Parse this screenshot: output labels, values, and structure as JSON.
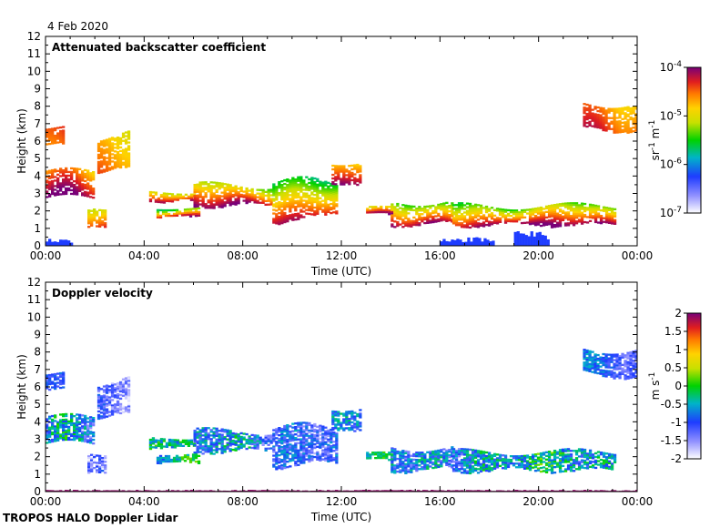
{
  "date_label": "4 Feb 2020",
  "footer": "TROPOS HALO Doppler Lidar",
  "chart_data": [
    {
      "type": "heatmap",
      "title": "Attenuated backscatter coefficient",
      "xlabel": "Time (UTC)",
      "ylabel": "Height (km)",
      "x_ticks": [
        "00:00",
        "04:00",
        "08:00",
        "12:00",
        "16:00",
        "20:00",
        "00:00"
      ],
      "x_range_hours": [
        0,
        24
      ],
      "ylim": [
        0,
        12
      ],
      "y_ticks": [
        "0",
        "1",
        "2",
        "3",
        "4",
        "5",
        "6",
        "7",
        "8",
        "9",
        "10",
        "11",
        "12"
      ],
      "colorbar": {
        "scale": "log",
        "range": [
          1e-07,
          0.0001
        ],
        "ticks": [
          {
            "value": 0.0001,
            "base": "10",
            "exp": "-4"
          },
          {
            "value": 1e-05,
            "base": "10",
            "exp": "-5"
          },
          {
            "value": 1e-06,
            "base": "10",
            "exp": "-6"
          },
          {
            "value": 1e-07,
            "base": "10",
            "exp": "-7"
          }
        ],
        "unit": {
          "a": "sr",
          "a_exp": "-1",
          "b": " m",
          "b_exp": "-1"
        }
      },
      "layers": [
        {
          "t0": 0.0,
          "t1": 0.7,
          "h0": 5.8,
          "h1": 7.0,
          "c0": 0.85,
          "c1": 0.8
        },
        {
          "t0": 0.0,
          "t1": 1.9,
          "h0": 2.6,
          "h1": 4.5,
          "c0": 0.75,
          "c1": 0.98
        },
        {
          "t0": 1.7,
          "t1": 2.4,
          "h0": 1.1,
          "h1": 2.5,
          "c0": 0.65,
          "c1": 0.9
        },
        {
          "t0": 2.1,
          "t1": 3.4,
          "h0": 4.0,
          "h1": 6.8,
          "c0": 0.75,
          "c1": 0.85
        },
        {
          "t0": 4.2,
          "t1": 6.0,
          "h0": 2.5,
          "h1": 3.2,
          "c0": 0.65,
          "c1": 0.98
        },
        {
          "t0": 4.5,
          "t1": 6.2,
          "h0": 1.6,
          "h1": 2.3,
          "c0": 0.5,
          "c1": 0.95
        },
        {
          "t0": 6.0,
          "t1": 9.2,
          "h0": 2.2,
          "h1": 3.7,
          "c0": 0.6,
          "c1": 0.98
        },
        {
          "t0": 9.2,
          "t1": 11.8,
          "h0": 1.3,
          "h1": 4.0,
          "c0": 0.5,
          "c1": 0.98
        },
        {
          "t0": 11.6,
          "t1": 12.8,
          "h0": 3.5,
          "h1": 5.1,
          "c0": 0.7,
          "c1": 0.95
        },
        {
          "t0": 13.0,
          "t1": 14.0,
          "h0": 1.8,
          "h1": 2.3,
          "c0": 0.6,
          "c1": 0.95
        },
        {
          "t0": 14.0,
          "t1": 16.5,
          "h0": 1.1,
          "h1": 2.8,
          "c0": 0.55,
          "c1": 0.98
        },
        {
          "t0": 16.5,
          "t1": 23.1,
          "h0": 1.1,
          "h1": 2.5,
          "c0": 0.55,
          "c1": 0.98
        },
        {
          "t0": 21.8,
          "t1": 24.0,
          "h0": 6.5,
          "h1": 8.5,
          "c0": 0.8,
          "c1": 0.9
        }
      ],
      "surface": [
        {
          "t0": 0.0,
          "t1": 1.0,
          "h0": 0.0,
          "h1": 0.4,
          "c": 0.25
        },
        {
          "t0": 16.0,
          "t1": 18.2,
          "h0": 0.0,
          "h1": 0.5,
          "c": 0.25
        },
        {
          "t0": 19.0,
          "t1": 20.4,
          "h0": 0.0,
          "h1": 0.9,
          "c": 0.25
        }
      ]
    },
    {
      "type": "heatmap",
      "title": "Doppler velocity",
      "xlabel": "Time (UTC)",
      "ylabel": "Height (km)",
      "x_ticks": [
        "00:00",
        "04:00",
        "08:00",
        "12:00",
        "16:00",
        "20:00",
        "00:00"
      ],
      "x_range_hours": [
        0,
        24
      ],
      "ylim": [
        0,
        12
      ],
      "y_ticks": [
        "0",
        "1",
        "2",
        "3",
        "4",
        "5",
        "6",
        "7",
        "8",
        "9",
        "10",
        "11",
        "12"
      ],
      "colorbar": {
        "scale": "linear",
        "range": [
          -2,
          2
        ],
        "tick_values": [
          2,
          1.5,
          1,
          0.5,
          0,
          -0.5,
          -1,
          -1.5,
          -2
        ],
        "tick_labels": [
          "2",
          "1.5",
          "1",
          "0.5",
          "0",
          "-0.5",
          "-1",
          "-1.5",
          "-2"
        ],
        "unit": {
          "a": "m s",
          "a_exp": "-1"
        }
      },
      "layers": [
        {
          "t0": 0.0,
          "t1": 0.7,
          "h0": 5.8,
          "h1": 7.0,
          "c0": 0.15,
          "c1": 0.3
        },
        {
          "t0": 0.0,
          "t1": 1.9,
          "h0": 2.6,
          "h1": 4.5,
          "c0": 0.15,
          "c1": 0.45
        },
        {
          "t0": 1.7,
          "t1": 2.4,
          "h0": 1.1,
          "h1": 2.5,
          "c0": 0.05,
          "c1": 0.3
        },
        {
          "t0": 2.1,
          "t1": 3.4,
          "h0": 4.0,
          "h1": 6.8,
          "c0": 0.1,
          "c1": 0.3
        },
        {
          "t0": 4.2,
          "t1": 6.0,
          "h0": 2.5,
          "h1": 3.2,
          "c0": 0.3,
          "c1": 0.55
        },
        {
          "t0": 4.5,
          "t1": 6.2,
          "h0": 1.6,
          "h1": 2.3,
          "c0": 0.3,
          "c1": 0.5
        },
        {
          "t0": 6.0,
          "t1": 9.2,
          "h0": 2.2,
          "h1": 3.7,
          "c0": 0.15,
          "c1": 0.45
        },
        {
          "t0": 9.2,
          "t1": 11.8,
          "h0": 1.3,
          "h1": 4.0,
          "c0": 0.15,
          "c1": 0.4
        },
        {
          "t0": 11.6,
          "t1": 12.8,
          "h0": 3.5,
          "h1": 5.1,
          "c0": 0.15,
          "c1": 0.4
        },
        {
          "t0": 13.0,
          "t1": 14.0,
          "h0": 1.8,
          "h1": 2.3,
          "c0": 0.3,
          "c1": 0.45
        },
        {
          "t0": 14.0,
          "t1": 16.5,
          "h0": 1.1,
          "h1": 2.8,
          "c0": 0.15,
          "c1": 0.45
        },
        {
          "t0": 16.5,
          "t1": 23.1,
          "h0": 1.1,
          "h1": 2.5,
          "c0": 0.2,
          "c1": 0.5
        },
        {
          "t0": 21.8,
          "t1": 24.0,
          "h0": 6.5,
          "h1": 8.5,
          "c0": 0.2,
          "c1": 0.35
        }
      ],
      "surface": [
        {
          "t0": 0.0,
          "t1": 24.0,
          "h0": 0.0,
          "h1": 0.1,
          "c": 0.98
        }
      ]
    }
  ]
}
